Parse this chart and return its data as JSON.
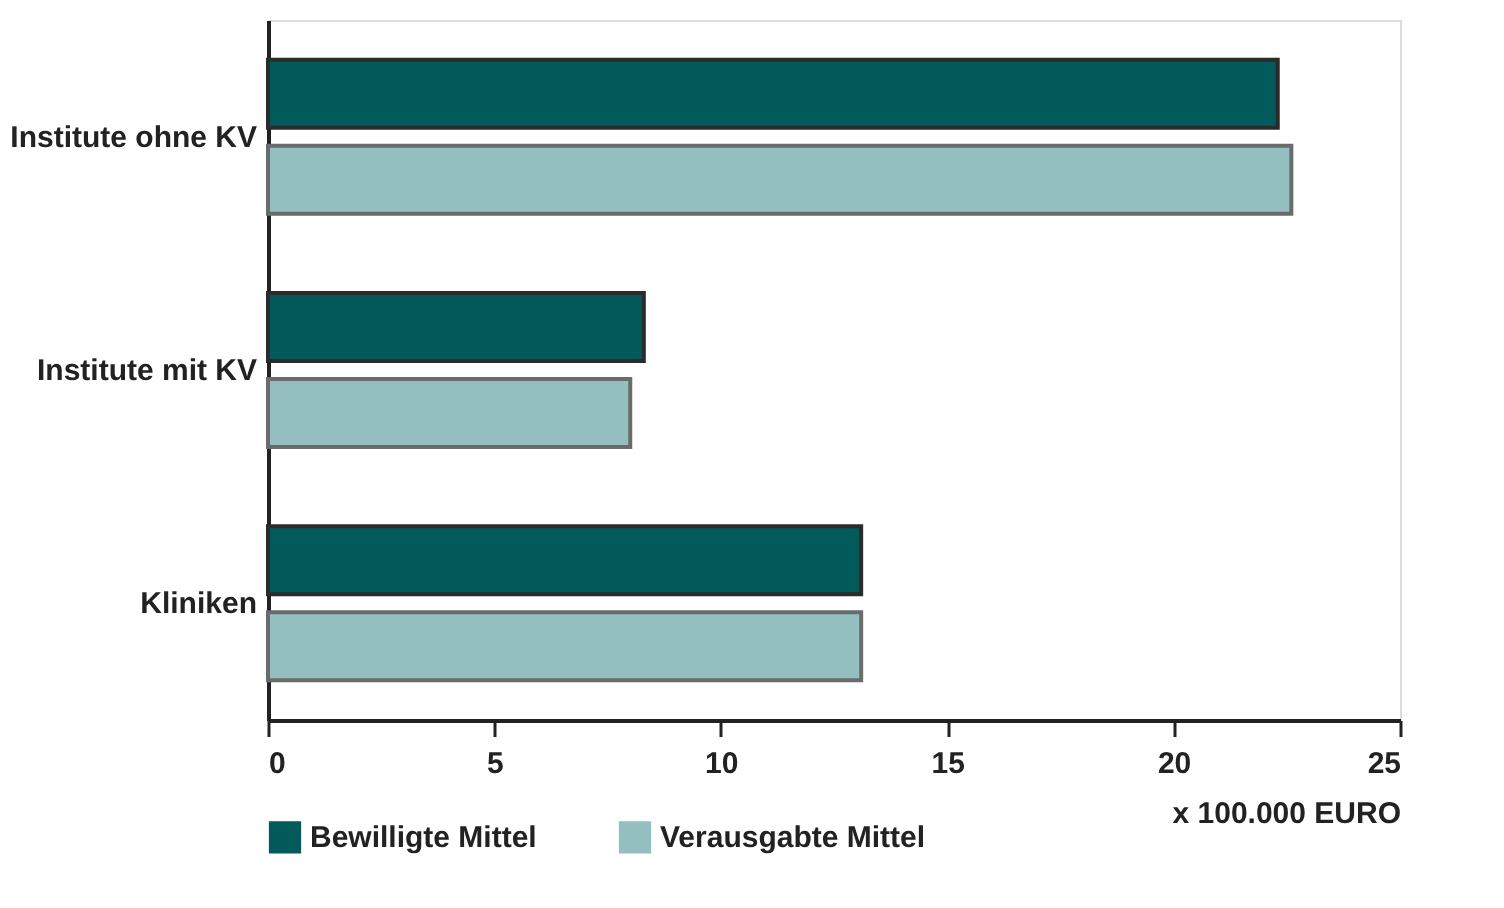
{
  "chart_data": {
    "type": "bar",
    "orientation": "horizontal",
    "xlabel": "x 100.000 EURO",
    "categories": [
      "Institute ohne KV",
      "Institute mit KV",
      "Kliniken"
    ],
    "series": [
      {
        "name": "Bewilligte Mittel",
        "color": "#035a5a",
        "values": [
          22.3,
          8.3,
          13.1
        ]
      },
      {
        "name": "Verausgabte Mittel",
        "color": "#93bfc1",
        "values": [
          22.6,
          8.0,
          13.1
        ]
      }
    ],
    "xlim": [
      0,
      25
    ],
    "xticks": [
      0,
      5,
      10,
      15,
      20,
      25
    ],
    "grid": false,
    "legend": "bottom left"
  }
}
